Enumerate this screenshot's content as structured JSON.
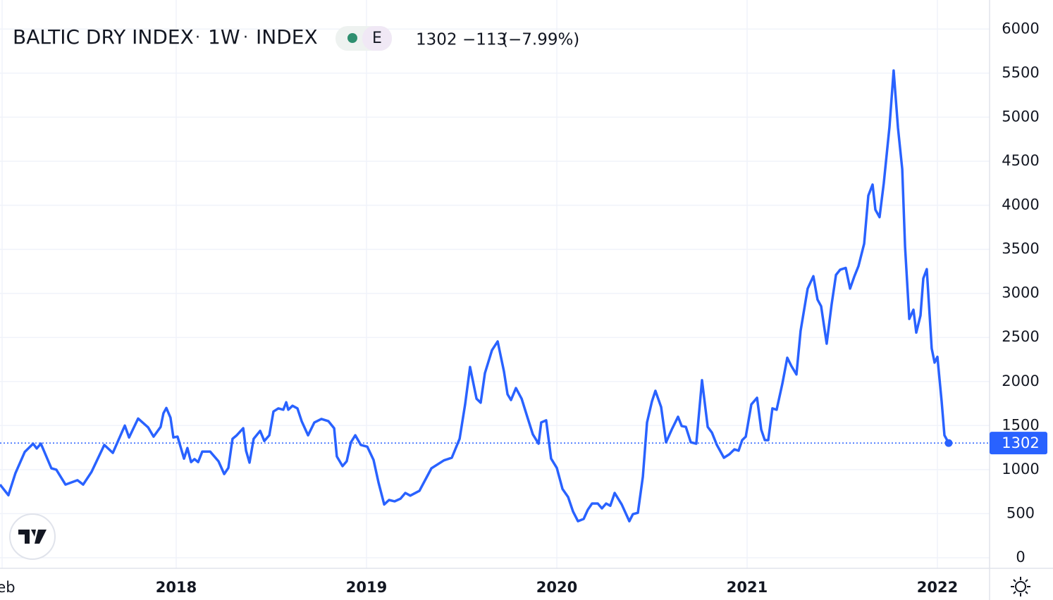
{
  "chart_data": {
    "type": "line",
    "title": "BALTIC DRY INDEX",
    "interval": "1W",
    "exchange": "INDEX",
    "badge": "E",
    "change": "−113",
    "change_percent": "(−7.99%)",
    "color": "#2962ff",
    "grid": true,
    "xlim": [
      2017.074,
      2022.274
    ],
    "ylim": [
      -120,
      6330
    ],
    "xticks": [
      {
        "value": 2017.085,
        "label": "Feb"
      },
      2018,
      2019,
      2020,
      2021,
      2022
    ],
    "yticks": [
      0,
      500,
      1000,
      1500,
      2000,
      2500,
      3000,
      3500,
      4000,
      4500,
      5000,
      5500,
      6000
    ],
    "x": [
      2017.074,
      2017.118,
      2017.155,
      2017.204,
      2017.248,
      2017.267,
      2017.289,
      2017.344,
      2017.37,
      2017.418,
      2017.481,
      2017.511,
      2017.555,
      2017.622,
      2017.667,
      2017.73,
      2017.752,
      2017.8,
      2017.852,
      2017.881,
      2017.918,
      2017.933,
      2017.948,
      2017.97,
      2017.985,
      2018.007,
      2018.041,
      2018.059,
      2018.078,
      2018.096,
      2018.115,
      2018.137,
      2018.178,
      2018.222,
      2018.252,
      2018.274,
      2018.296,
      2018.318,
      2018.352,
      2018.367,
      2018.385,
      2018.407,
      2018.441,
      2018.463,
      2018.489,
      2018.511,
      2018.537,
      2018.563,
      2018.578,
      2018.589,
      2018.611,
      2018.637,
      2018.659,
      2018.693,
      2018.726,
      2018.763,
      2018.8,
      2018.83,
      2018.844,
      2018.874,
      2018.896,
      2018.918,
      2018.941,
      2018.97,
      2019.004,
      2019.037,
      2019.063,
      2019.093,
      2019.118,
      2019.148,
      2019.178,
      2019.204,
      2019.23,
      2019.278,
      2019.341,
      2019.407,
      2019.448,
      2019.489,
      2019.518,
      2019.544,
      2019.578,
      2019.6,
      2019.622,
      2019.659,
      2019.689,
      2019.722,
      2019.741,
      2019.759,
      2019.785,
      2019.815,
      2019.844,
      2019.874,
      2019.904,
      2019.918,
      2019.944,
      2019.97,
      2020.0,
      2020.03,
      2020.059,
      2020.085,
      2020.111,
      2020.141,
      2020.163,
      2020.185,
      2020.215,
      2020.237,
      2020.259,
      2020.281,
      2020.304,
      2020.341,
      2020.381,
      2020.4,
      2020.426,
      2020.452,
      2020.474,
      2020.5,
      2020.518,
      2020.548,
      2020.574,
      2020.604,
      2020.637,
      2020.656,
      2020.678,
      2020.704,
      2020.733,
      2020.763,
      2020.793,
      2020.815,
      2020.841,
      2020.878,
      2020.907,
      2020.933,
      2020.955,
      2020.974,
      2020.993,
      2021.022,
      2021.052,
      2021.074,
      2021.093,
      2021.111,
      2021.133,
      2021.155,
      2021.185,
      2021.211,
      2021.233,
      2021.259,
      2021.281,
      2021.318,
      2021.348,
      2021.37,
      2021.389,
      2021.418,
      2021.444,
      2021.467,
      2021.489,
      2021.518,
      2021.541,
      2021.563,
      2021.585,
      2021.615,
      2021.637,
      2021.659,
      2021.674,
      2021.696,
      2021.718,
      2021.748,
      2021.77,
      2021.793,
      2021.815,
      2021.83,
      2021.852,
      2021.874,
      2021.889,
      2021.911,
      2021.926,
      2021.944,
      2021.97,
      2021.985,
      2022.0,
      2022.022,
      2022.037,
      2022.059
    ],
    "values": [
      830,
      710,
      960,
      1200,
      1295,
      1240,
      1295,
      1015,
      1000,
      830,
      880,
      830,
      975,
      1280,
      1190,
      1500,
      1365,
      1580,
      1480,
      1375,
      1485,
      1640,
      1700,
      1590,
      1365,
      1375,
      1125,
      1245,
      1085,
      1120,
      1085,
      1205,
      1205,
      1095,
      950,
      1020,
      1350,
      1390,
      1470,
      1215,
      1080,
      1350,
      1440,
      1325,
      1390,
      1660,
      1695,
      1680,
      1765,
      1680,
      1725,
      1695,
      1550,
      1390,
      1535,
      1575,
      1550,
      1470,
      1150,
      1040,
      1095,
      1310,
      1390,
      1280,
      1260,
      1110,
      855,
      605,
      655,
      640,
      670,
      735,
      705,
      760,
      1015,
      1105,
      1135,
      1350,
      1740,
      2165,
      1805,
      1760,
      2095,
      2355,
      2455,
      2115,
      1855,
      1790,
      1925,
      1805,
      1605,
      1400,
      1295,
      1535,
      1560,
      1125,
      1020,
      780,
      690,
      525,
      415,
      440,
      545,
      615,
      615,
      560,
      615,
      590,
      735,
      605,
      415,
      495,
      510,
      920,
      1535,
      1775,
      1895,
      1710,
      1310,
      1455,
      1600,
      1495,
      1485,
      1310,
      1295,
      2015,
      1485,
      1420,
      1280,
      1135,
      1175,
      1230,
      1215,
      1335,
      1375,
      1740,
      1815,
      1455,
      1335,
      1335,
      1695,
      1680,
      1975,
      2270,
      2175,
      2080,
      2575,
      3055,
      3195,
      2930,
      2855,
      2430,
      2875,
      3210,
      3270,
      3290,
      3055,
      3190,
      3310,
      3565,
      4110,
      4235,
      3950,
      3865,
      4250,
      4890,
      5530,
      4875,
      4410,
      3530,
      2710,
      2815,
      2555,
      2750,
      3170,
      3275,
      2375,
      2215,
      2280,
      1775,
      1390,
      1302
    ]
  }
}
